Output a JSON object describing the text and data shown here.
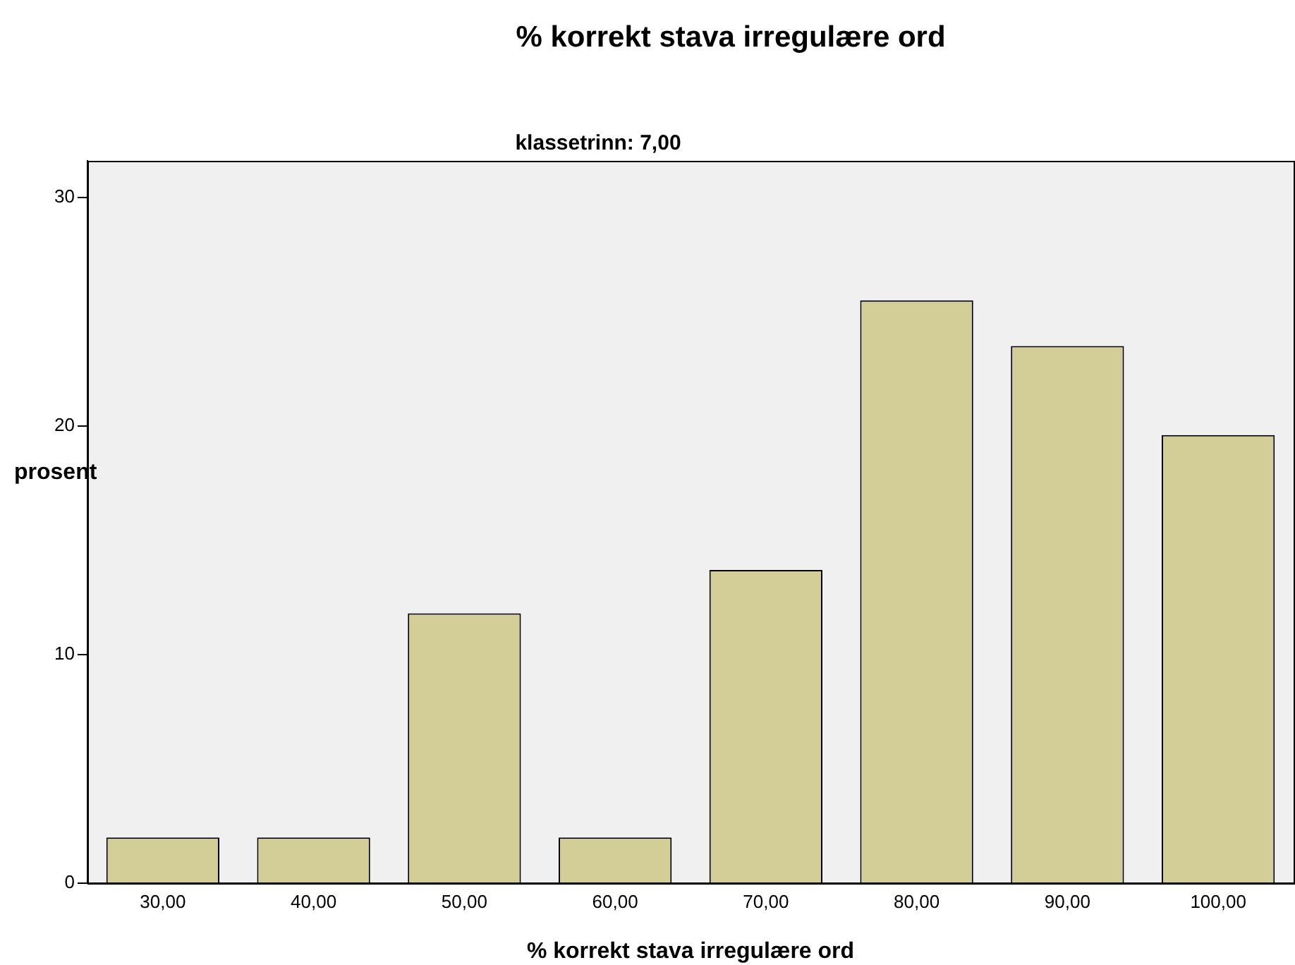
{
  "chart_data": {
    "type": "bar",
    "title": "% korrekt stava irregulære ord",
    "subtitle": "klassetrinn: 7,00",
    "xlabel": "% korrekt stava irregulære ord",
    "ylabel": "prosent",
    "categories": [
      "30,00",
      "40,00",
      "50,00",
      "60,00",
      "70,00",
      "80,00",
      "90,00",
      "100,00"
    ],
    "values": [
      2.0,
      2.0,
      11.8,
      2.0,
      13.7,
      25.5,
      23.5,
      19.6
    ],
    "color": "#d3ce97",
    "ylim": [
      0,
      31.6
    ],
    "yticks": [
      0,
      10,
      20,
      30
    ],
    "grid": false,
    "legend": false
  }
}
